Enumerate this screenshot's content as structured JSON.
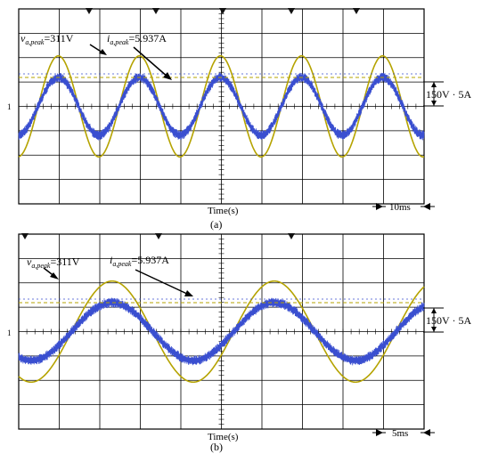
{
  "chart_data": [
    {
      "type": "line",
      "panel_label": "(a)",
      "xlabel": "Time(s)",
      "scale_text": "10ms",
      "scale_right_text": "150V · 5A",
      "zero_marker": "1",
      "ann_v_main": "v",
      "ann_v_sub": "a,peak",
      "ann_v_val": "=311V",
      "ann_i_main": "i",
      "ann_i_sub": "a,peak",
      "ann_i_val": "=5.937A",
      "time_per_div_ms": 10,
      "x_range_ms": [
        0,
        100
      ],
      "y_range_div": [
        -4,
        4
      ],
      "cycles_visible": 5,
      "series": [
        {
          "quantity": "voltage",
          "color": "#b5a300",
          "peak": 311,
          "units_per_div": 150,
          "unit": "V"
        },
        {
          "quantity": "current",
          "color": "#3a4fd0",
          "peak": 5.937,
          "units_per_div": 5,
          "unit": "A"
        }
      ]
    },
    {
      "type": "line",
      "panel_label": "(b)",
      "xlabel": "Time(s)",
      "scale_text": "5ms",
      "scale_right_text": "150V · 5A",
      "zero_marker": "1",
      "ann_v_main": "v",
      "ann_v_sub": "a,peak",
      "ann_v_val": "=311V",
      "ann_i_main": "i",
      "ann_i_sub": "a,peak",
      "ann_i_val": "=5.937A",
      "time_per_div_ms": 5,
      "x_range_ms": [
        0,
        50
      ],
      "y_range_div": [
        -4,
        4
      ],
      "cycles_visible": 2.5,
      "series": [
        {
          "quantity": "voltage",
          "color": "#b5a300",
          "peak": 311,
          "units_per_div": 150,
          "unit": "V"
        },
        {
          "quantity": "current",
          "color": "#3a4fd0",
          "peak": 5.937,
          "units_per_div": 5,
          "unit": "A"
        }
      ]
    }
  ]
}
